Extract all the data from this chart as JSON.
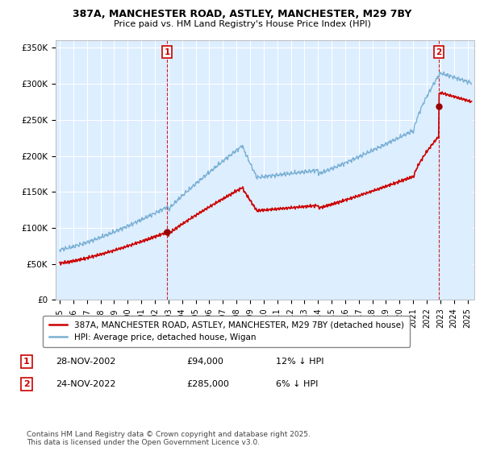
{
  "title1": "387A, MANCHESTER ROAD, ASTLEY, MANCHESTER, M29 7BY",
  "title2": "Price paid vs. HM Land Registry's House Price Index (HPI)",
  "ylabel_ticks": [
    "£0",
    "£50K",
    "£100K",
    "£150K",
    "£200K",
    "£250K",
    "£300K",
    "£350K"
  ],
  "ytick_vals": [
    0,
    50000,
    100000,
    150000,
    200000,
    250000,
    300000,
    350000
  ],
  "ylim": [
    0,
    360000
  ],
  "xlim_start": 1994.7,
  "xlim_end": 2025.5,
  "legend_line1": "387A, MANCHESTER ROAD, ASTLEY, MANCHESTER, M29 7BY (detached house)",
  "legend_line2": "HPI: Average price, detached house, Wigan",
  "sale1_year": 2002.9,
  "sale1_price": 94000,
  "sale1_label": "£94,000",
  "sale1_note": "12% ↓ HPI",
  "sale1_date": "28-NOV-2002",
  "sale2_year": 2022.9,
  "sale2_price": 285000,
  "sale2_label": "£285,000",
  "sale2_note": "6% ↓ HPI",
  "sale2_date": "24-NOV-2022",
  "footer": "Contains HM Land Registry data © Crown copyright and database right 2025.\nThis data is licensed under the Open Government Licence v3.0.",
  "line1_color": "#cc0000",
  "line2_color": "#7ab0d4",
  "fill_color": "#ddeeff",
  "marker_color": "#990000",
  "vline_color": "#cc0000",
  "annotation_box_color": "#cc0000",
  "background_color": "#ffffff",
  "grid_color": "#cccccc"
}
